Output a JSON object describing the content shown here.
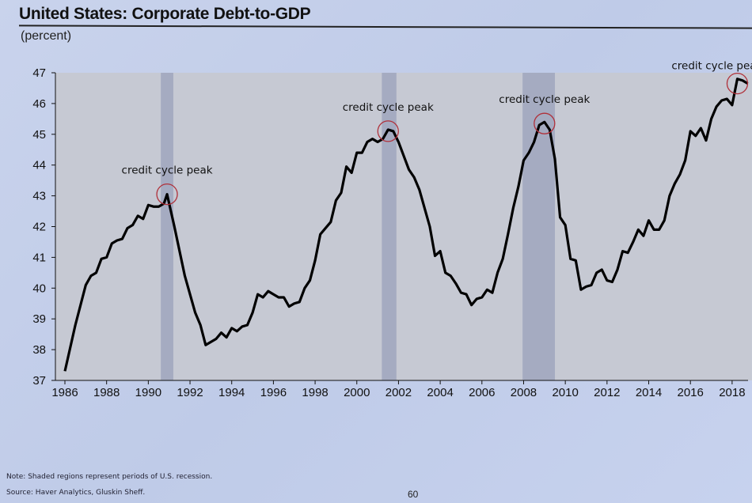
{
  "header": {
    "title": "United States: Corporate Debt-to-GDP",
    "unit": "(percent)"
  },
  "footer": {
    "note": "Note: Shaded regions represent periods of U.S. recession.",
    "source": "Source: Haver Analytics, Gluskin Sheff.",
    "page_number": "60"
  },
  "chart_data": {
    "type": "line",
    "title": "United States: Corporate Debt-to-GDP",
    "ylabel": "(percent)",
    "xlabel": "",
    "ylim": [
      37,
      47
    ],
    "xlim": [
      1985.55,
      2018.95
    ],
    "yticks": [
      "37",
      "38",
      "39",
      "40",
      "41",
      "42",
      "43",
      "44",
      "45",
      "46",
      "47"
    ],
    "xticks": [
      "1986",
      "1988",
      "1990",
      "1992",
      "1994",
      "1996",
      "1998",
      "2000",
      "2002",
      "2004",
      "2006",
      "2008",
      "2010",
      "2012",
      "2014",
      "2016",
      "2018"
    ],
    "recessions": [
      [
        1990.6,
        1991.2
      ],
      [
        2001.2,
        2001.9
      ],
      [
        2007.95,
        2009.5
      ]
    ],
    "annotations": [
      {
        "text": "credit cycle peak",
        "x": 1990.9,
        "y": 43.05
      },
      {
        "text": "credit cycle peak",
        "x": 2001.5,
        "y": 45.1
      },
      {
        "text": "credit cycle peak",
        "x": 2009.0,
        "y": 45.35
      },
      {
        "text": "credit cycle peak?",
        "x": 2018.25,
        "y": 46.65
      }
    ],
    "series": [
      {
        "name": "Corporate Debt-to-GDP",
        "color": "#000000",
        "x": [
          1986,
          1986.5,
          1987,
          1987.25,
          1987.5,
          1987.75,
          1988,
          1988.25,
          1988.5,
          1988.75,
          1989,
          1989.25,
          1989.5,
          1989.75,
          1990,
          1990.25,
          1990.5,
          1990.75,
          1990.9,
          1991.25,
          1991.75,
          1992.25,
          1992.5,
          1992.75,
          1993,
          1993.25,
          1993.5,
          1993.75,
          1994,
          1994.25,
          1994.5,
          1994.75,
          1995,
          1995.25,
          1995.5,
          1995.75,
          1996,
          1996.25,
          1996.5,
          1996.75,
          1997,
          1997.25,
          1997.5,
          1997.75,
          1998,
          1998.25,
          1998.5,
          1998.75,
          1999,
          1999.25,
          1999.5,
          1999.75,
          2000,
          2000.25,
          2000.5,
          2000.75,
          2001,
          2001.25,
          2001.5,
          2001.75,
          2002,
          2002.25,
          2002.5,
          2002.75,
          2003,
          2003.25,
          2003.5,
          2003.75,
          2004,
          2004.25,
          2004.5,
          2004.75,
          2005,
          2005.25,
          2005.5,
          2005.75,
          2006,
          2006.25,
          2006.5,
          2006.75,
          2007,
          2007.25,
          2007.5,
          2007.75,
          2008,
          2008.25,
          2008.5,
          2008.75,
          2009,
          2009.25,
          2009.5,
          2009.75,
          2010,
          2010.25,
          2010.5,
          2010.75,
          2011,
          2011.25,
          2011.5,
          2011.75,
          2012,
          2012.25,
          2012.5,
          2012.75,
          2013,
          2013.25,
          2013.5,
          2013.75,
          2014,
          2014.25,
          2014.5,
          2014.75,
          2015,
          2015.25,
          2015.5,
          2015.75,
          2016,
          2016.25,
          2016.5,
          2016.75,
          2017,
          2017.25,
          2017.5,
          2017.75,
          2018,
          2018.25,
          2018.5,
          2018.75
        ],
        "values": [
          37.3,
          38.8,
          40.1,
          40.4,
          40.5,
          40.95,
          41.0,
          41.45,
          41.55,
          41.6,
          41.95,
          42.05,
          42.35,
          42.25,
          42.7,
          42.65,
          42.65,
          42.75,
          43.05,
          42.0,
          40.4,
          39.2,
          38.8,
          38.15,
          38.25,
          38.35,
          38.55,
          38.4,
          38.7,
          38.6,
          38.75,
          38.8,
          39.2,
          39.8,
          39.7,
          39.9,
          39.8,
          39.7,
          39.7,
          39.4,
          39.5,
          39.55,
          40.0,
          40.25,
          40.9,
          41.75,
          41.95,
          42.15,
          42.85,
          43.1,
          43.95,
          43.75,
          44.4,
          44.4,
          44.75,
          44.85,
          44.75,
          44.85,
          45.15,
          45.1,
          44.75,
          44.3,
          43.85,
          43.6,
          43.2,
          42.6,
          42.0,
          41.05,
          41.2,
          40.5,
          40.4,
          40.15,
          39.85,
          39.8,
          39.45,
          39.65,
          39.7,
          39.95,
          39.85,
          40.5,
          40.95,
          41.75,
          42.6,
          43.3,
          44.15,
          44.4,
          44.75,
          45.3,
          45.4,
          45.15,
          44.2,
          42.3,
          42.05,
          40.95,
          40.9,
          39.95,
          40.05,
          40.1,
          40.5,
          40.6,
          40.25,
          40.2,
          40.6,
          41.2,
          41.15,
          41.5,
          41.9,
          41.7,
          42.2,
          41.9,
          41.9,
          42.2,
          43.0,
          43.4,
          43.7,
          44.15,
          45.1,
          44.95,
          45.2,
          44.8,
          45.5,
          45.9,
          46.1,
          46.15,
          45.95,
          46.8,
          46.75,
          46.65
        ]
      }
    ]
  },
  "colors": {
    "plot_bg": "#c6c9d3",
    "recession": "#9fa6bd",
    "line": "#000000",
    "circle": "#b0303a"
  }
}
